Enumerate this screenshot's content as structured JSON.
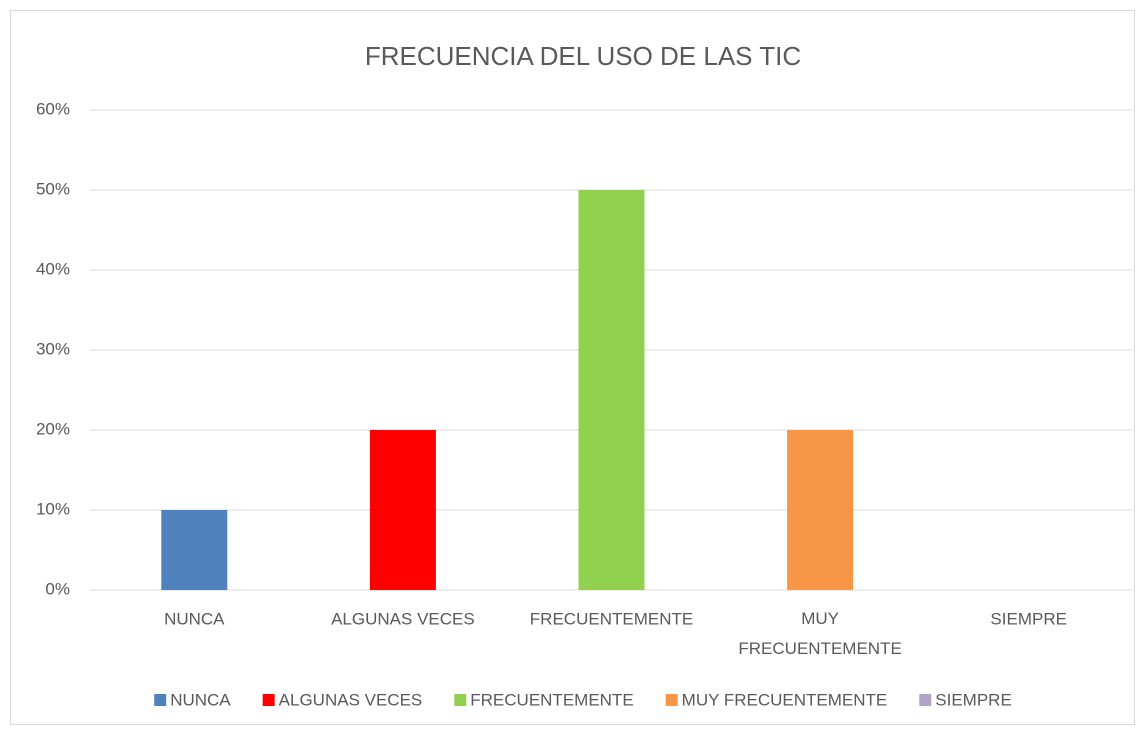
{
  "chart_data": {
    "type": "bar",
    "title": "FRECUENCIA DEL USO DE LAS TIC",
    "categories": [
      "NUNCA",
      "ALGUNAS VECES",
      "FRECUENTEMENTE",
      "MUY FRECUENTEMENTE",
      "SIEMPRE"
    ],
    "values": [
      10,
      20,
      50,
      20,
      0
    ],
    "colors": [
      "#4f81bd",
      "#ff0000",
      "#92d050",
      "#f79646",
      "#b3a2c7"
    ],
    "ylim": [
      0,
      60
    ],
    "yticks": [
      {
        "value": 0,
        "label": "0%"
      },
      {
        "value": 10,
        "label": "10%"
      },
      {
        "value": 20,
        "label": "20%"
      },
      {
        "value": 30,
        "label": "30%"
      },
      {
        "value": 40,
        "label": "40%"
      },
      {
        "value": 50,
        "label": "50%"
      },
      {
        "value": 60,
        "label": "60%"
      }
    ],
    "grid": true,
    "legend": "bottom"
  }
}
